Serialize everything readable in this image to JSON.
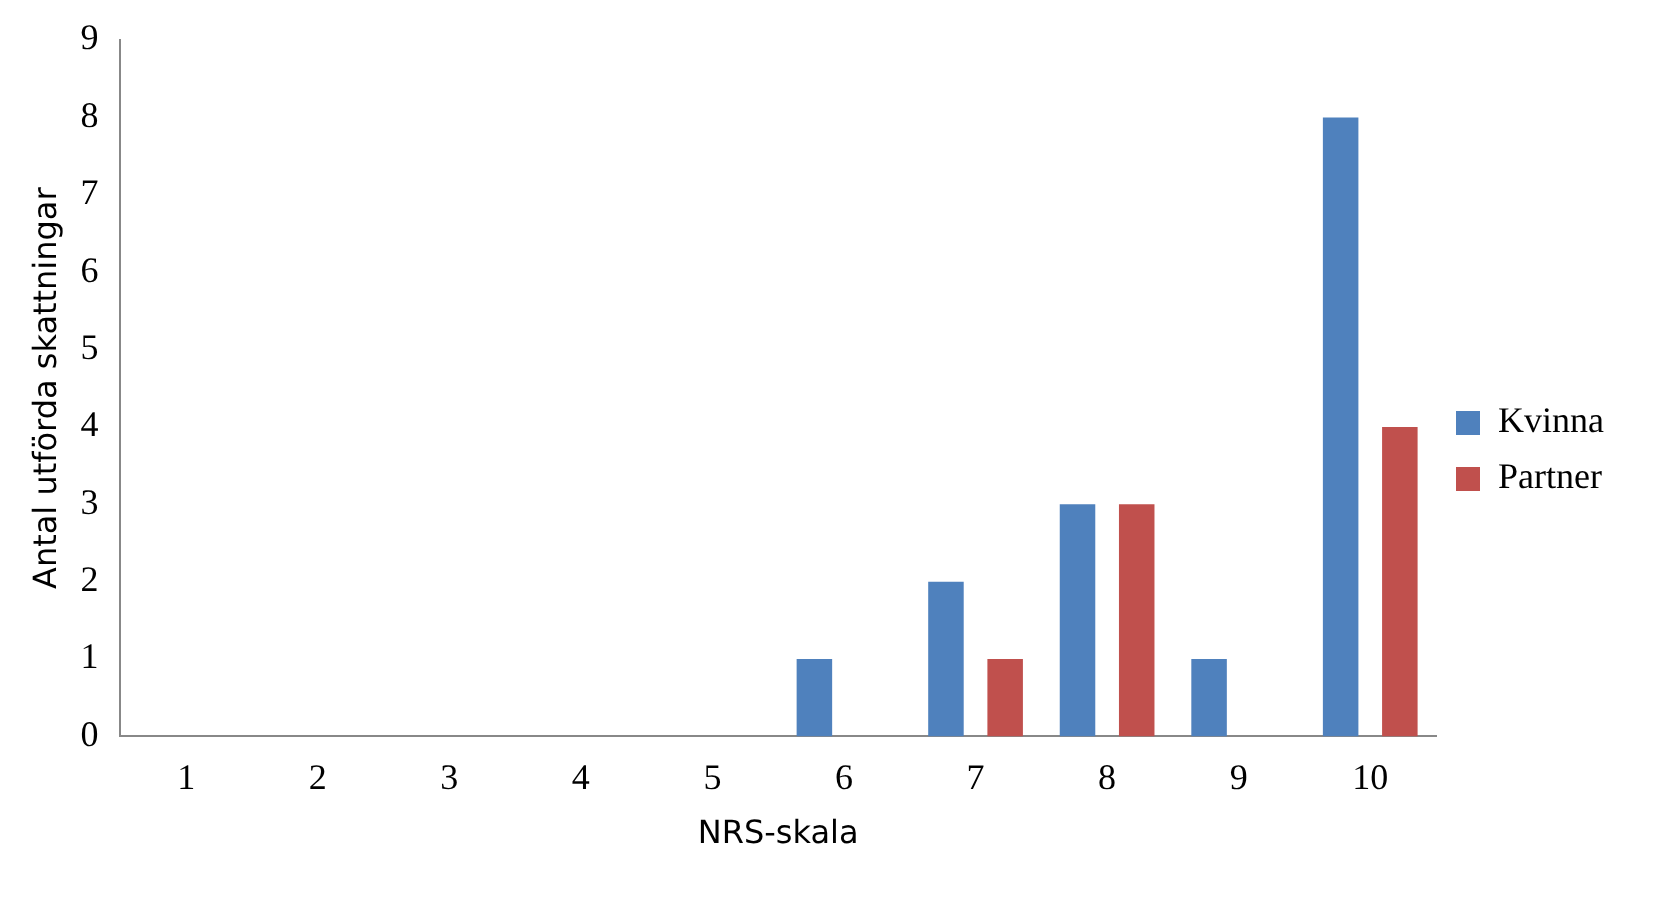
{
  "chart_data": {
    "type": "bar",
    "xlabel": "NRS-skala",
    "ylabel": "Antal utförda skattningar",
    "categories": [
      "1",
      "2",
      "3",
      "4",
      "5",
      "6",
      "7",
      "8",
      "9",
      "10"
    ],
    "series": [
      {
        "name": "Kvinna",
        "color": "#4f81bd",
        "values": [
          0,
          0,
          0,
          0,
          0,
          1,
          2,
          3,
          1,
          8
        ]
      },
      {
        "name": "Partner",
        "color": "#c0504d",
        "values": [
          0,
          0,
          0,
          0,
          0,
          0,
          1,
          3,
          0,
          4
        ]
      }
    ],
    "ylim": [
      0,
      9
    ],
    "yticks": [
      0,
      1,
      2,
      3,
      4,
      5,
      6,
      7,
      8,
      9
    ],
    "grid": false,
    "legend": "right"
  }
}
